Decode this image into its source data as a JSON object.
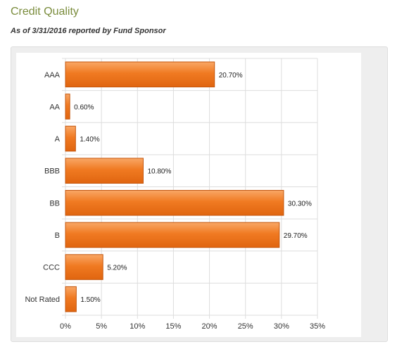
{
  "header": {
    "title": "Credit Quality",
    "subtitle": "As of 3/31/2016 reported by Fund Sponsor"
  },
  "colors": {
    "bar_fill": "#f07a22",
    "bar_stroke": "#c4560c",
    "grid": "#dddddd",
    "title": "#7a8c3c"
  },
  "chart_data": {
    "type": "bar",
    "orientation": "horizontal",
    "categories": [
      "AAA",
      "AA",
      "A",
      "BBB",
      "BB",
      "B",
      "CCC",
      "Not Rated"
    ],
    "values": [
      20.7,
      0.6,
      1.4,
      10.8,
      30.3,
      29.7,
      5.2,
      1.5
    ],
    "value_labels": [
      "20.70%",
      "0.60%",
      "1.40%",
      "10.80%",
      "30.30%",
      "29.70%",
      "5.20%",
      "1.50%"
    ],
    "xlim": [
      0,
      35
    ],
    "xticks": [
      0,
      5,
      10,
      15,
      20,
      25,
      30,
      35
    ],
    "xtick_labels": [
      "0%",
      "5%",
      "10%",
      "15%",
      "20%",
      "25%",
      "30%",
      "35%"
    ],
    "grid": true,
    "legend": "none"
  }
}
